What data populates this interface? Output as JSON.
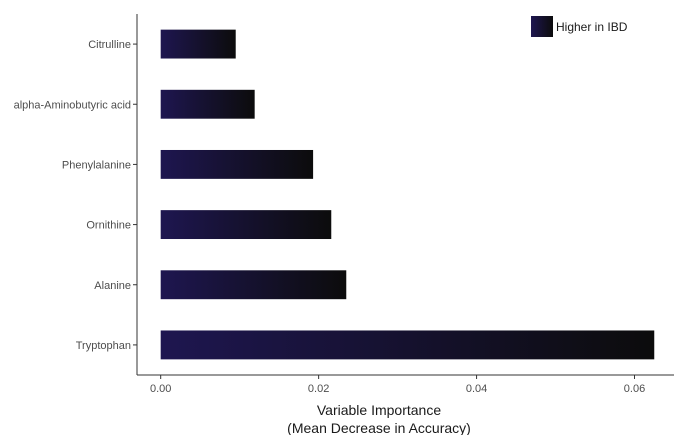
{
  "chart_data": {
    "type": "bar",
    "orientation": "horizontal",
    "categories": [
      "Citrulline",
      "alpha-Aminobutyric acid",
      "Phenylalanine",
      "Ornithine",
      "Alanine",
      "Tryptophan"
    ],
    "series": [
      {
        "name": "Higher in IBD",
        "values": [
          0.0095,
          0.0119,
          0.0193,
          0.0216,
          0.0235,
          0.0625
        ]
      }
    ],
    "xlabel_line1": "Variable Importance",
    "xlabel_line2": "(Mean Decrease in Accuracy)",
    "ylabel": "",
    "xlim": [
      -0.003,
      0.065
    ],
    "x_ticks": [
      0.0,
      0.02,
      0.04,
      0.06
    ],
    "x_tick_labels": [
      "0.00",
      "0.02",
      "0.04",
      "0.06"
    ],
    "grid": false,
    "legend_placement": "top-right",
    "colors": {
      "bar_start": "#1e1650",
      "bar_end": "#0c0c0c",
      "axis": "#333333",
      "tick_text": "#4d4d4d"
    }
  }
}
